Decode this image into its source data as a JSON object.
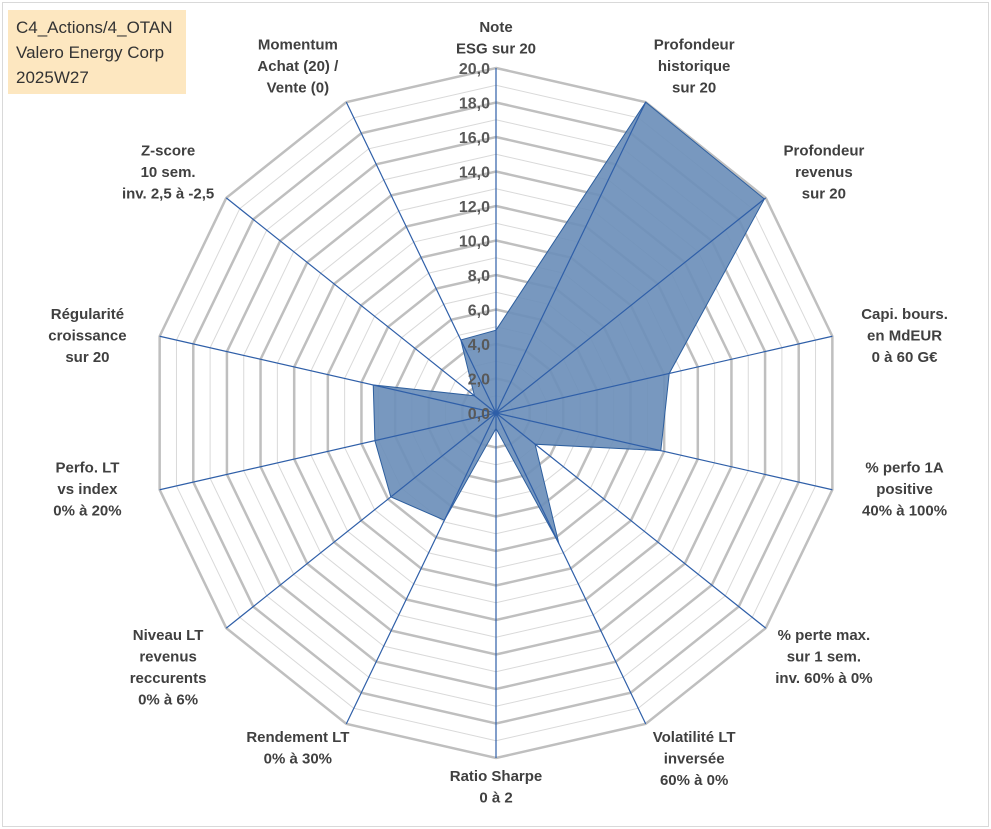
{
  "info_box": {
    "line1": "C4_Actions/4_OTAN",
    "line2": "Valero Energy Corp",
    "line3": "2025W27"
  },
  "chart_data": {
    "type": "radar",
    "title": "",
    "rmin": 0,
    "rmax": 20,
    "ticks": [
      "0,0",
      "2,0",
      "4,0",
      "6,0",
      "8,0",
      "10,0",
      "12,0",
      "14,0",
      "16,0",
      "18,0",
      "20,0"
    ],
    "tick_values": [
      0,
      2,
      4,
      6,
      8,
      10,
      12,
      14,
      16,
      18,
      20
    ],
    "grid": true,
    "axes": [
      [
        "Note",
        "ESG sur 20"
      ],
      [
        "Profondeur",
        "historique",
        "sur 20"
      ],
      [
        "Profondeur",
        "revenus",
        "sur 20"
      ],
      [
        "Capi. bours.",
        "en MdEUR",
        "0 à 60 G€"
      ],
      [
        "% perfo 1A",
        "positive",
        "40% à 100%"
      ],
      [
        "% perte max.",
        "sur 1 sem.",
        "inv. 60% à 0%"
      ],
      [
        "Volatilité LT",
        "inversée",
        "60% à 0%"
      ],
      [
        "Ratio Sharpe",
        "0 à 2"
      ],
      [
        "Rendement LT",
        "0% à 30%"
      ],
      [
        "Niveau LT",
        "revenus",
        "reccurents",
        "0% à 6%"
      ],
      [
        "Perfo. LT",
        "vs index",
        "0% à 20%"
      ],
      [
        "Régularité",
        "croissance",
        "sur 20"
      ],
      [
        "Z-score",
        "10 sem.",
        "inv. 2,5 à -2,5"
      ],
      [
        "Momentum",
        "Achat (20) /",
        "Vente (0)"
      ]
    ],
    "series": [
      {
        "values": [
          4.8,
          20.0,
          19.9,
          10.3,
          9.8,
          2.9,
          8.4,
          0.9,
          6.9,
          7.8,
          7.2,
          7.3,
          1.6,
          4.7
        ]
      }
    ],
    "colors": {
      "fill": "#6d8fba",
      "stroke": "#2e5f9e",
      "spoke": "#2f5fa8",
      "grid_major": "#bfbfbf",
      "grid_minor": "#d9d9d9"
    }
  }
}
